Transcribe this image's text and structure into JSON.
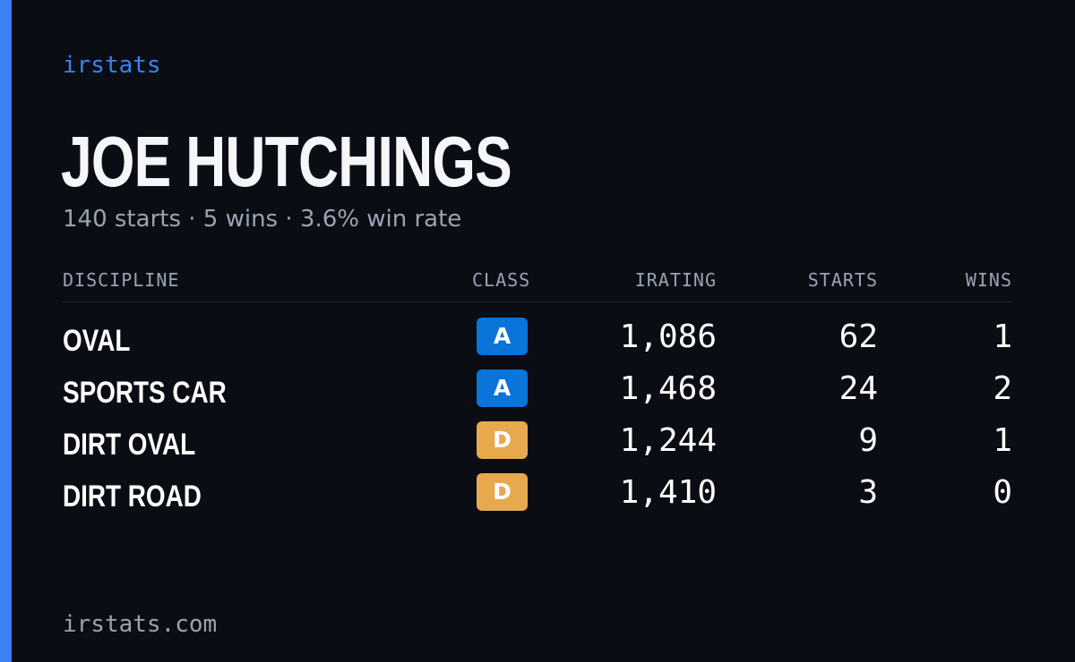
{
  "brand": "irstats",
  "player": {
    "name": "JOE HUTCHINGS",
    "summary": "140 starts · 5 wins · 3.6% win rate"
  },
  "table": {
    "headers": {
      "discipline": "DISCIPLINE",
      "class": "CLASS",
      "irating": "IRATING",
      "starts": "STARTS",
      "wins": "WINS"
    },
    "rows": [
      {
        "discipline": "OVAL",
        "class": "A",
        "irating": "1,086",
        "starts": "62",
        "wins": "1"
      },
      {
        "discipline": "SPORTS CAR",
        "class": "A",
        "irating": "1,468",
        "starts": "24",
        "wins": "2"
      },
      {
        "discipline": "DIRT OVAL",
        "class": "D",
        "irating": "1,244",
        "starts": "9",
        "wins": "1"
      },
      {
        "discipline": "DIRT ROAD",
        "class": "D",
        "irating": "1,410",
        "starts": "3",
        "wins": "0"
      }
    ]
  },
  "colors": {
    "accent": "#3b82f6",
    "class_a": "#0a74da",
    "class_d": "#e8a94e",
    "background": "#0a0d14"
  },
  "footer": {
    "url": "irstats.com"
  }
}
